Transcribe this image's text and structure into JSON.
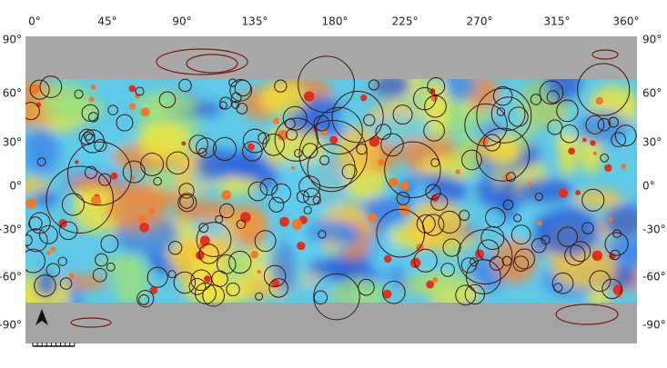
{
  "map": {
    "x_labels": [
      "0°",
      "45°",
      "90°",
      "135°",
      "180°",
      "225°",
      "270°",
      "315°",
      "360°"
    ],
    "y_labels": [
      "90°",
      "60°",
      "30°",
      "0°",
      "-30°",
      "-60°",
      "-90°"
    ]
  }
}
